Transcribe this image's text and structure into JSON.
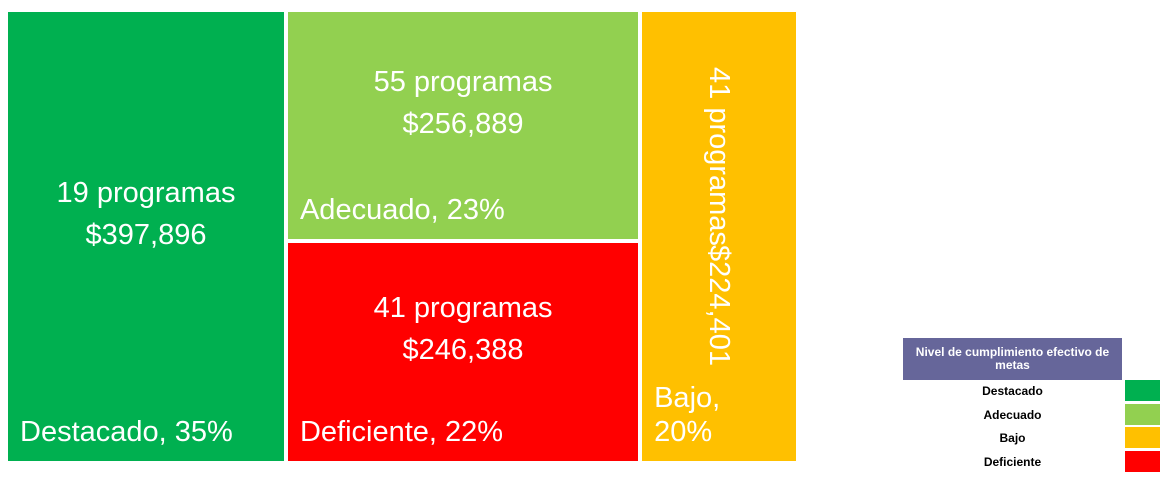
{
  "chart_data": {
    "type": "treemap",
    "categories": [
      "Destacado",
      "Adecuado",
      "Bajo",
      "Deficiente"
    ],
    "values": [
      397896,
      256889,
      224401,
      246388
    ],
    "value_labels": [
      "$397,896",
      "$256,889",
      "$224,401",
      "$246,388"
    ],
    "program_labels": [
      "19 programas",
      "55 programas",
      "41 programas",
      "41 programas"
    ],
    "labels": [
      "Destacado, 35%",
      "Adecuado, 23%",
      "Bajo, 20%",
      "Deficiente, 22%"
    ],
    "colors": [
      "#00b050",
      "#92d050",
      "#ffc000",
      "#ff0000"
    ],
    "legend_title": "Nivel de cumplimiento efectivo de metas",
    "legend": "right"
  }
}
